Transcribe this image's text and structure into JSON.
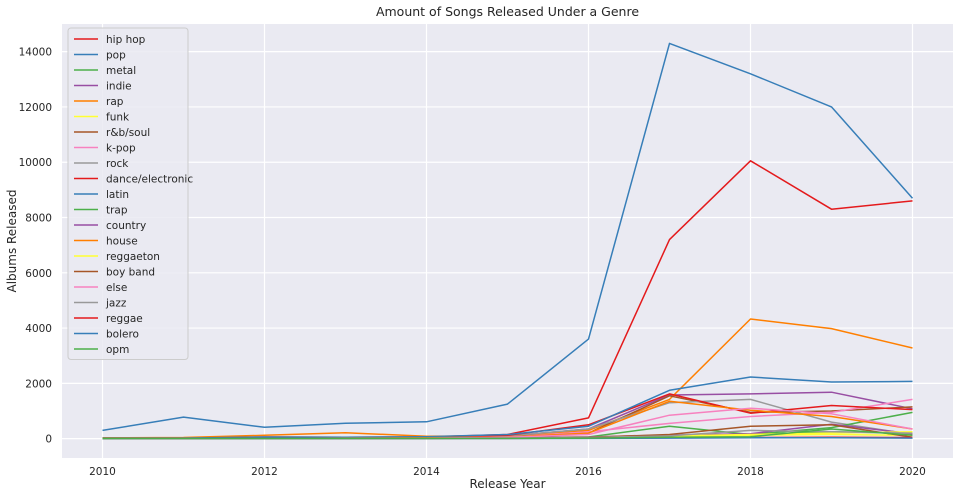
{
  "chart_data": {
    "type": "line",
    "title": "Amount of Songs Released Under a Genre",
    "xlabel": "Release Year",
    "ylabel": "Albums Released",
    "xlim": [
      2009.5,
      2020.5
    ],
    "ylim": [
      -700,
      15000
    ],
    "xticks": [
      2010,
      2012,
      2014,
      2016,
      2018,
      2020
    ],
    "yticks": [
      0,
      2000,
      4000,
      6000,
      8000,
      10000,
      12000,
      14000
    ],
    "grid": true,
    "legend_position": "top-left",
    "background": "#eaeaf2",
    "x": [
      2010,
      2011,
      2012,
      2013,
      2014,
      2015,
      2016,
      2017,
      2018,
      2019,
      2020
    ],
    "series": [
      {
        "name": "hip hop",
        "color": "#e41a1c",
        "values": [
          20,
          20,
          60,
          50,
          60,
          150,
          750,
          7200,
          10050,
          8300,
          8600
        ]
      },
      {
        "name": "pop",
        "color": "#377eb8",
        "values": [
          300,
          780,
          410,
          560,
          610,
          1250,
          3600,
          14300,
          13200,
          12000,
          8700
        ]
      },
      {
        "name": "metal",
        "color": "#4daf4a",
        "values": [
          5,
          5,
          10,
          10,
          10,
          20,
          40,
          120,
          150,
          250,
          200
        ]
      },
      {
        "name": "indie",
        "color": "#984ea3",
        "values": [
          10,
          10,
          30,
          30,
          40,
          100,
          350,
          1580,
          1620,
          1680,
          1080
        ]
      },
      {
        "name": "rap",
        "color": "#ff7f00",
        "values": [
          30,
          40,
          120,
          210,
          90,
          100,
          300,
          1420,
          4330,
          3980,
          3280
        ]
      },
      {
        "name": "funk",
        "color": "#ffff33",
        "values": [
          5,
          5,
          10,
          10,
          10,
          20,
          30,
          80,
          120,
          150,
          120
        ]
      },
      {
        "name": "r&b/soul",
        "color": "#a65628",
        "values": [
          10,
          10,
          30,
          30,
          40,
          80,
          200,
          1550,
          950,
          1000,
          1150
        ]
      },
      {
        "name": "k-pop",
        "color": "#f781bf",
        "values": [
          5,
          5,
          10,
          10,
          20,
          50,
          250,
          550,
          800,
          950,
          1420
        ]
      },
      {
        "name": "rock",
        "color": "#999999",
        "values": [
          20,
          20,
          50,
          50,
          60,
          100,
          350,
          1300,
          1420,
          600,
          150
        ]
      },
      {
        "name": "dance/electronic",
        "color": "#e41a1c",
        "values": [
          10,
          10,
          30,
          30,
          40,
          120,
          500,
          1620,
          920,
          1200,
          1050
        ]
      },
      {
        "name": "latin",
        "color": "#377eb8",
        "values": [
          20,
          20,
          60,
          50,
          70,
          150,
          450,
          1750,
          2230,
          2050,
          2070
        ]
      },
      {
        "name": "trap",
        "color": "#4daf4a",
        "values": [
          5,
          5,
          10,
          10,
          10,
          30,
          60,
          450,
          150,
          400,
          950
        ]
      },
      {
        "name": "country",
        "color": "#984ea3",
        "values": [
          5,
          5,
          10,
          10,
          20,
          30,
          60,
          130,
          180,
          520,
          180
        ]
      },
      {
        "name": "house",
        "color": "#ff7f00",
        "values": [
          5,
          5,
          10,
          20,
          30,
          60,
          200,
          1350,
          1030,
          800,
          350
        ]
      },
      {
        "name": "reggaeton",
        "color": "#ffff33",
        "values": [
          5,
          5,
          10,
          10,
          10,
          20,
          40,
          100,
          150,
          200,
          250
        ]
      },
      {
        "name": "boy band",
        "color": "#a65628",
        "values": [
          5,
          5,
          10,
          10,
          10,
          20,
          50,
          150,
          450,
          500,
          50
        ]
      },
      {
        "name": "else",
        "color": "#f781bf",
        "values": [
          5,
          5,
          10,
          20,
          20,
          50,
          150,
          850,
          1100,
          900,
          350
        ]
      },
      {
        "name": "jazz",
        "color": "#999999",
        "values": [
          5,
          5,
          10,
          10,
          10,
          20,
          40,
          100,
          300,
          250,
          200
        ]
      },
      {
        "name": "reggae",
        "color": "#e41a1c",
        "values": [
          5,
          5,
          10,
          10,
          10,
          10,
          20,
          30,
          40,
          50,
          40
        ]
      },
      {
        "name": "bolero",
        "color": "#377eb8",
        "values": [
          5,
          5,
          5,
          5,
          5,
          5,
          10,
          20,
          30,
          30,
          20
        ]
      },
      {
        "name": "opm",
        "color": "#4daf4a",
        "values": [
          5,
          5,
          5,
          10,
          10,
          10,
          20,
          50,
          70,
          350,
          120
        ]
      }
    ]
  }
}
